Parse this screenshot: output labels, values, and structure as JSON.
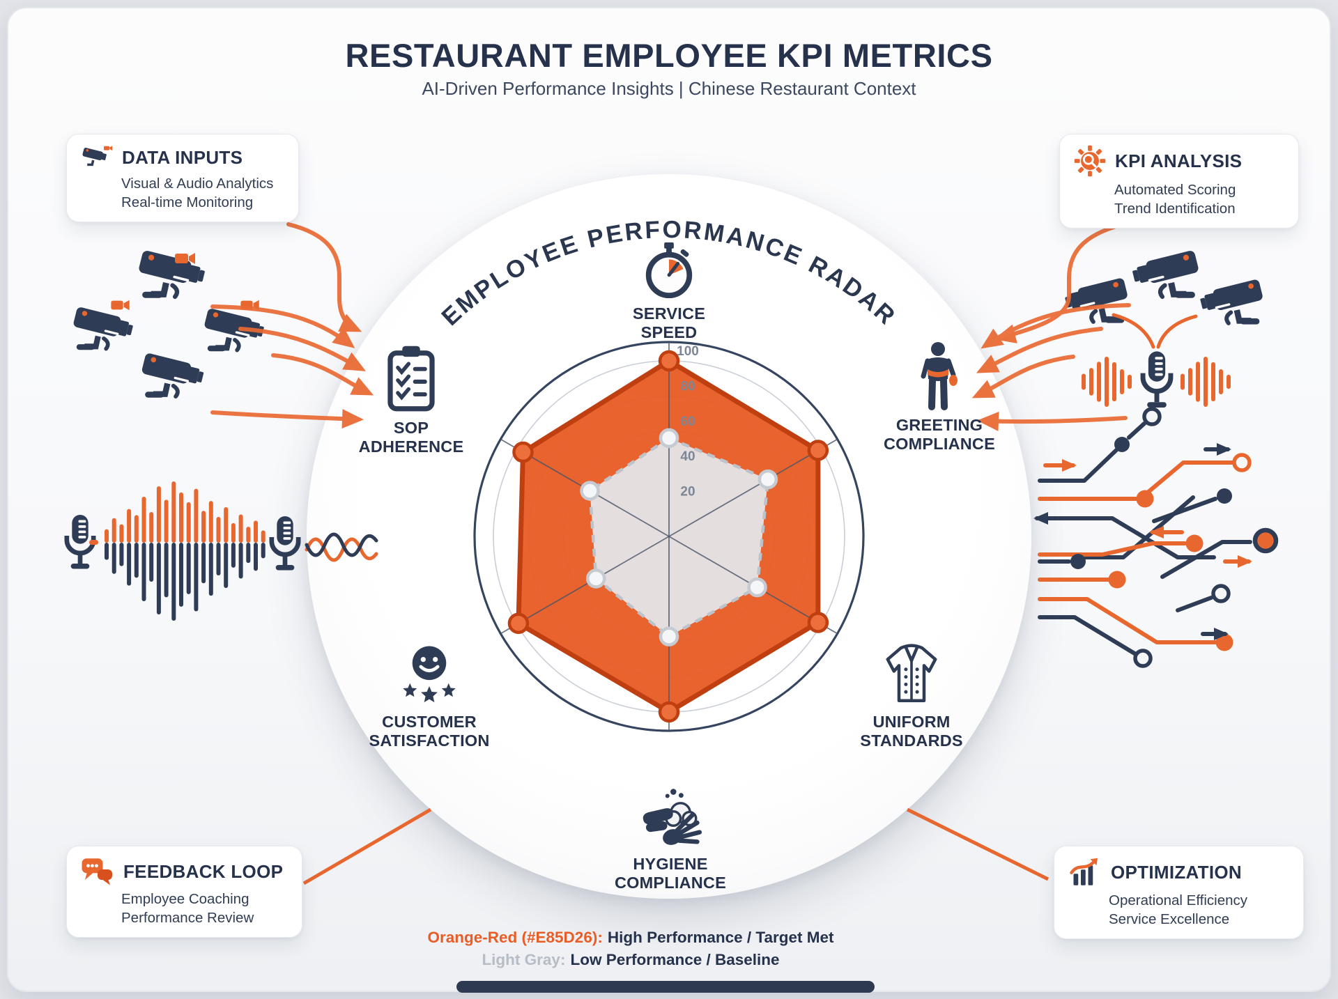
{
  "header": {
    "title": "RESTAURANT EMPLOYEE KPI METRICS",
    "subtitle": "AI-Driven Performance Insights | Chinese Restaurant Context"
  },
  "callouts": {
    "data_inputs": {
      "icon": "cctv-camera-icon",
      "title": "DATA INPUTS",
      "line1": "Visual & Audio Analytics",
      "line2": "Real-time Monitoring"
    },
    "kpi_analysis": {
      "icon": "gear-magnifier-icon",
      "title": "KPI ANALYSIS",
      "line1": "Automated Scoring",
      "line2": "Trend Identification"
    },
    "feedback_loop": {
      "icon": "chat-bubbles-icon",
      "title": "FEEDBACK LOOP",
      "line1": "Employee Coaching",
      "line2": "Performance Review"
    },
    "optimization": {
      "icon": "growth-chart-icon",
      "title": "OPTIMIZATION",
      "line1": "Operational Efficiency",
      "line2": "Service Excellence"
    }
  },
  "radar_title": "EMPLOYEE PERFORMANCE RADAR",
  "axis_labels": {
    "service_speed": {
      "icon": "stopwatch-icon",
      "line1": "SERVICE",
      "line2": "SPEED"
    },
    "greeting_compliance": {
      "icon": "person-icon",
      "line1": "GREETING",
      "line2": "COMPLIANCE"
    },
    "uniform_standards": {
      "icon": "chef-jacket-icon",
      "line1": "UNIFORM",
      "line2": "STANDARDS"
    },
    "hygiene_compliance": {
      "icon": "hand-washing-icon",
      "line1": "HYGIENE",
      "line2": "COMPLIANCE"
    },
    "customer_satisfaction": {
      "icon": "smiley-stars-icon",
      "line1": "CUSTOMER",
      "line2": "SATISFACTION"
    },
    "sop_adherence": {
      "icon": "checklist-clipboard-icon",
      "line1": "SOP",
      "line2": "ADHERENCE"
    }
  },
  "chart_data": {
    "type": "radar",
    "title": "EMPLOYEE PERFORMANCE RADAR",
    "axes": [
      "SERVICE SPEED",
      "GREETING COMPLIANCE",
      "UNIFORM STANDARDS",
      "HYGIENE COMPLIANCE",
      "CUSTOMER SATISFACTION",
      "SOP ADHERENCE"
    ],
    "rlim": [
      0,
      100
    ],
    "ticks": [
      20,
      40,
      60,
      80,
      100
    ],
    "grid": "circular",
    "legend_position": "bottom",
    "series": [
      {
        "name": "High Performance / Target Met",
        "fill": "#E85D26",
        "fill_opacity": 0.96,
        "stroke": "#C03F10",
        "stroke_width": 7,
        "marker_fill": "#ED6F3C",
        "marker_stroke": "#C03F10",
        "marker_r": 13,
        "values": [
          100,
          98,
          98,
          100,
          99,
          96
        ]
      },
      {
        "name": "Low Performance / Baseline",
        "fill": "#E4E6EA",
        "fill_opacity": 0.94,
        "stroke": "#BDC3CB",
        "stroke_width": 4.5,
        "dash": "11 9",
        "marker_fill": "#F5F6F8",
        "marker_stroke": "#C6CBD2",
        "marker_r": 12,
        "values": [
          56,
          65,
          58,
          57,
          48,
          52
        ]
      }
    ]
  },
  "legend": {
    "line1_label": "Orange-Red (#E85D26):",
    "line1_text": "High Performance / Target Met",
    "line2_label": "Light Gray:",
    "line2_text": "Low Performance / Baseline"
  },
  "colors": {
    "orange": "#E85D26",
    "orange_dark": "#C03F10",
    "navy": "#2E3C55",
    "light_gray": "#D9DCE1",
    "ring_gray": "#C9CED6",
    "background": "#E2E4E9"
  },
  "decor": {
    "left_cluster": "cctv-camera-icon x4, video-camera-icon x3, orange flow arrows",
    "right_cluster": "cctv-camera-icon x3, microphone-icon with waveform, orange flow arrows",
    "left_middle": "microphone-icon x2 with audio waveform and signal squiggle",
    "right_middle": "circuit-trace lines with nodes and arrows"
  }
}
